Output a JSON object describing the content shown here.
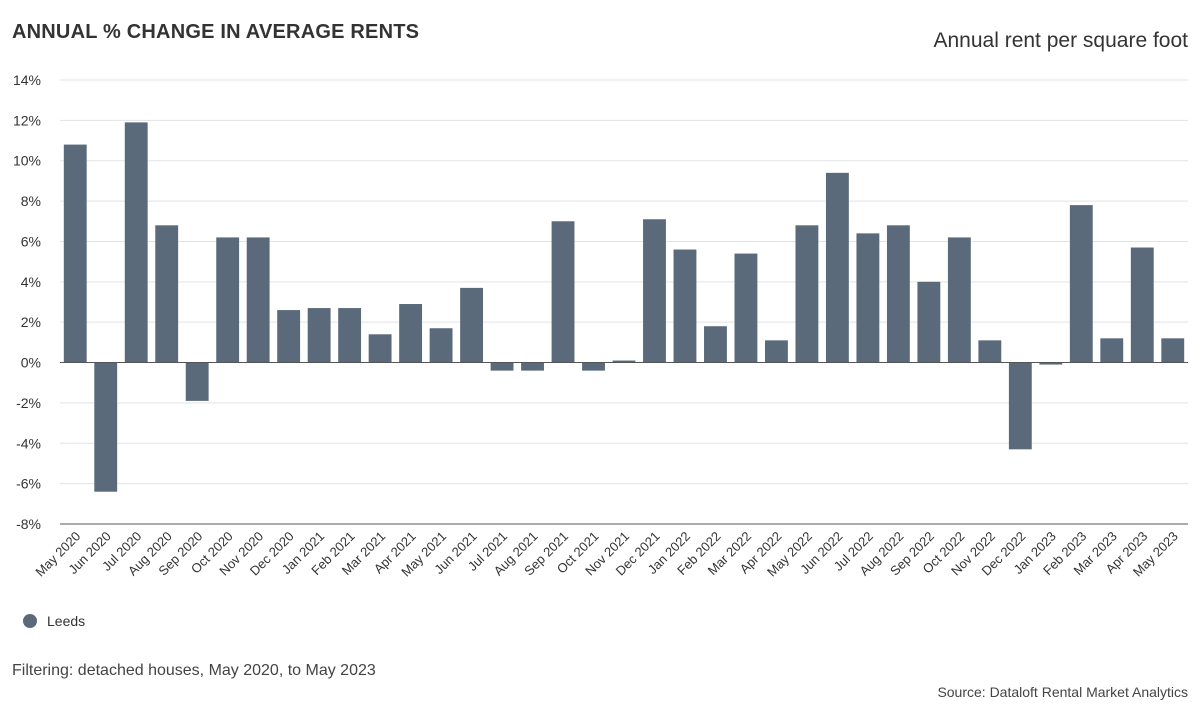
{
  "header": {
    "title": "ANNUAL % CHANGE IN AVERAGE RENTS",
    "subtitle": "Annual rent per square foot"
  },
  "footer": {
    "filter_note": "Filtering: detached houses, May 2020, to May 2023",
    "source": "Source: Dataloft Rental Market Analytics"
  },
  "colors": {
    "bar": "#5a6a7b",
    "grid": "#e3e3e3",
    "axis": "#555555",
    "text": "#333333"
  },
  "chart_data": {
    "type": "bar",
    "title": "ANNUAL % CHANGE IN AVERAGE RENTS",
    "subtitle": "Annual rent per square foot",
    "xlabel": "",
    "ylabel": "",
    "ylim": [
      -8,
      14
    ],
    "yticks": [
      -8,
      -6,
      -4,
      -2,
      0,
      2,
      4,
      6,
      8,
      10,
      12,
      14
    ],
    "ytick_suffix": "%",
    "grid": true,
    "legend_position": "bottom-left",
    "categories": [
      "May 2020",
      "Jun 2020",
      "Jul 2020",
      "Aug 2020",
      "Sep 2020",
      "Oct 2020",
      "Nov 2020",
      "Dec 2020",
      "Jan 2021",
      "Feb 2021",
      "Mar 2021",
      "Apr 2021",
      "May 2021",
      "Jun 2021",
      "Jul 2021",
      "Aug 2021",
      "Sep 2021",
      "Oct 2021",
      "Nov 2021",
      "Dec 2021",
      "Jan 2022",
      "Feb 2022",
      "Mar 2022",
      "Apr 2022",
      "May 2022",
      "Jun 2022",
      "Jul 2022",
      "Aug 2022",
      "Sep 2022",
      "Oct 2022",
      "Nov 2022",
      "Dec 2022",
      "Jan 2023",
      "Feb 2023",
      "Mar 2023",
      "Apr 2023",
      "May 2023"
    ],
    "series": [
      {
        "name": "Leeds",
        "color": "#5a6a7b",
        "values": [
          10.8,
          -6.4,
          11.9,
          6.8,
          -1.9,
          6.2,
          6.2,
          2.6,
          2.7,
          2.7,
          1.4,
          2.9,
          1.7,
          3.7,
          -0.4,
          -0.4,
          7.0,
          -0.4,
          0.1,
          7.1,
          5.6,
          1.8,
          5.4,
          1.1,
          6.8,
          9.4,
          6.4,
          6.8,
          4.0,
          6.2,
          1.1,
          -4.3,
          -0.1,
          7.8,
          1.2,
          5.7,
          1.2
        ]
      }
    ]
  }
}
